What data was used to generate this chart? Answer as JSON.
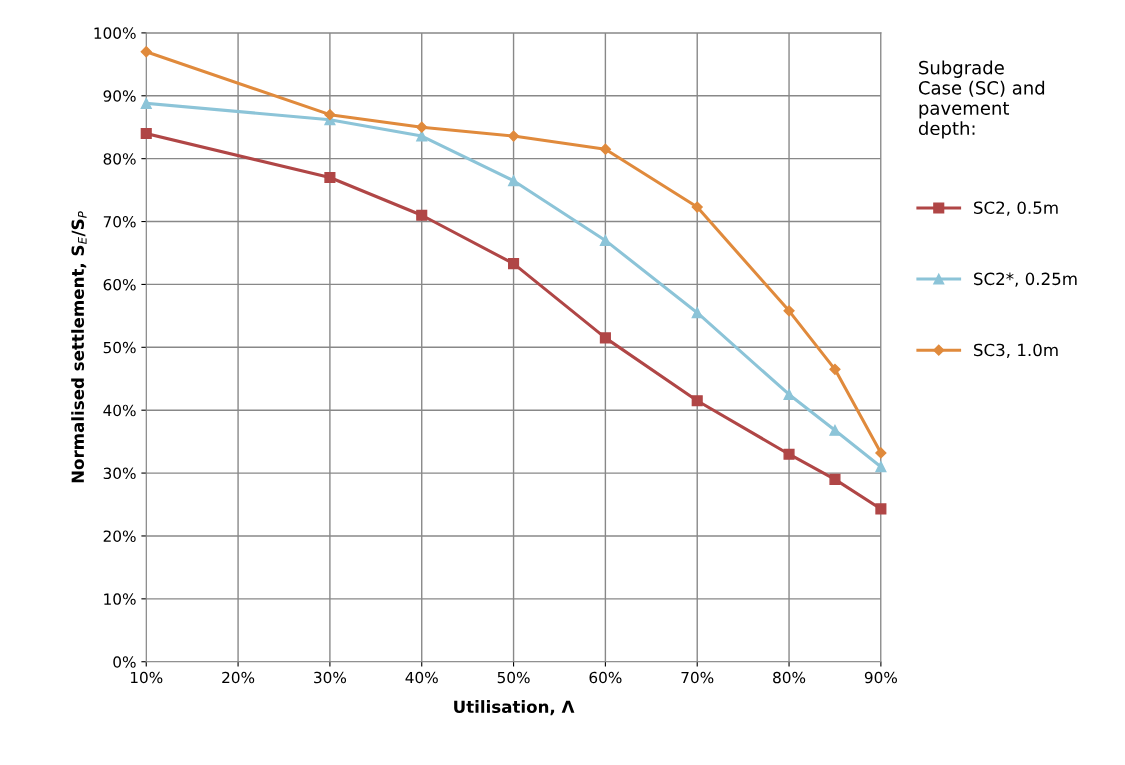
{
  "chart_data": {
    "type": "line",
    "xlabel": "Utilisation, Λ",
    "ylabel": "Normalised settlement, S$_{E}$/S$_{P}$",
    "legend_title": "Subgrade\nCase (SC) and\npavement\ndepth:",
    "legend": "right",
    "grid": true,
    "line_style": "solid",
    "x": [
      10,
      30,
      40,
      50,
      60,
      70,
      80,
      85,
      90
    ],
    "series": [
      {
        "name": "SC2, 0.5m",
        "color": "#b04646",
        "marker": "square",
        "values": [
          84,
          77,
          71,
          63.3,
          51.5,
          41.5,
          33,
          29,
          24.3
        ]
      },
      {
        "name": "SC2*, 0.25m",
        "color": "#8cc4d8",
        "marker": "triangle",
        "values": [
          88.8,
          86.2,
          83.6,
          76.5,
          67,
          55.5,
          42.5,
          36.8,
          31
        ]
      },
      {
        "name": "SC3, 1.0m",
        "color": "#e08a3c",
        "marker": "diamond",
        "values": [
          97,
          87,
          85,
          83.6,
          81.5,
          72.3,
          55.8,
          46.5,
          33.2
        ]
      }
    ],
    "xlim": [
      10,
      90
    ],
    "ylim": [
      0,
      100
    ],
    "xticks": [
      {
        "value": 10,
        "label": "10%"
      },
      {
        "value": 20,
        "label": "20%"
      },
      {
        "value": 30,
        "label": "30%"
      },
      {
        "value": 40,
        "label": "40%"
      },
      {
        "value": 50,
        "label": "50%"
      },
      {
        "value": 60,
        "label": "60%"
      },
      {
        "value": 70,
        "label": "70%"
      },
      {
        "value": 80,
        "label": "80%"
      },
      {
        "value": 90,
        "label": "90%"
      }
    ],
    "yticks": [
      {
        "value": 0,
        "label": "0%"
      },
      {
        "value": 10,
        "label": "10%"
      },
      {
        "value": 20,
        "label": "20%"
      },
      {
        "value": 30,
        "label": "30%"
      },
      {
        "value": 40,
        "label": "40%"
      },
      {
        "value": 50,
        "label": "50%"
      },
      {
        "value": 60,
        "label": "60%"
      },
      {
        "value": 70,
        "label": "70%"
      },
      {
        "value": 80,
        "label": "80%"
      },
      {
        "value": 90,
        "label": "90%"
      },
      {
        "value": 100,
        "label": "100%"
      }
    ]
  }
}
